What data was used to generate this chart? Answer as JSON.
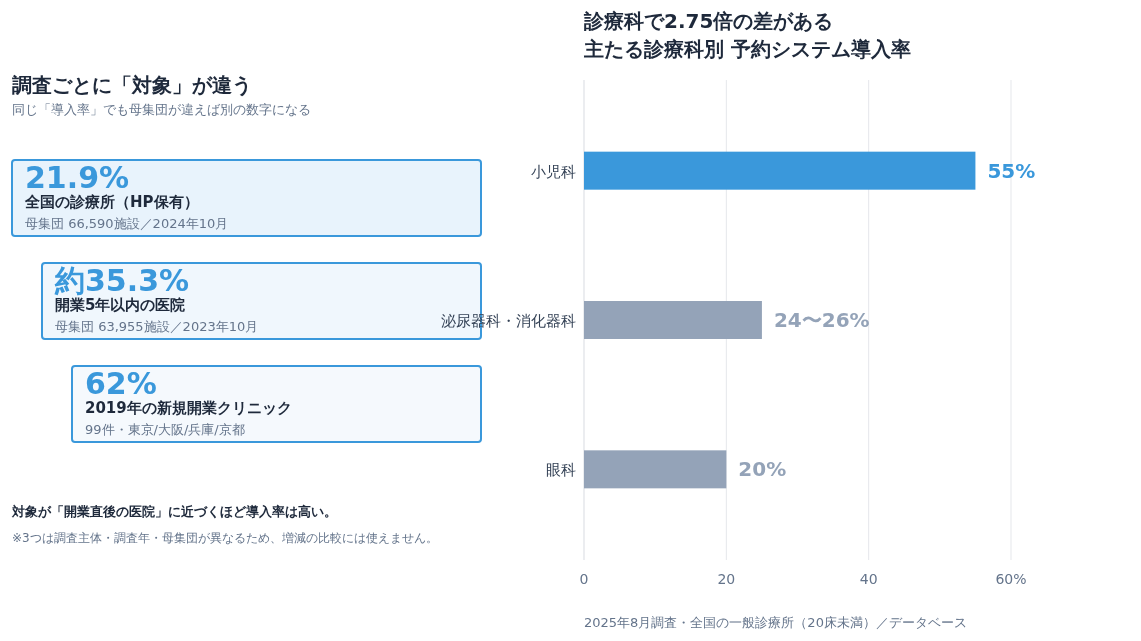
{
  "chart_data": [
    {
      "type": "other",
      "title": "調査ごとに「対象」が違う",
      "subtitle": "同じ「導入率」でも母集団が違えば別の数字になる",
      "annotations": [
        "21.9%",
        "全国の診療所（HP保有）",
        "母集団 66,590施設／2024年10月",
        "約35.3%",
        "開業5年以内の医院",
        "母集団 63,955施設／2023年10月",
        "62%",
        "2019年の新規開業クリニック",
        "99件・東京/大阪/兵庫/京都",
        "対象が「開業直後の医院」に近づくほど導入率は高い。",
        "※3つは調査主体・調査年・母集団が異なるため、増減の比較には使えません。"
      ]
    },
    {
      "type": "bar",
      "orientation": "horizontal",
      "title": "診療科で2.75倍の差がある",
      "subtitle": "主たる診療科別 予約システム導入率",
      "categories": [
        "小児科",
        "泌尿器科・消化器科",
        "眼科"
      ],
      "values": [
        55,
        25,
        20
      ],
      "colors": [
        "#3a98db",
        "#94a3b8",
        "#94a3b8"
      ],
      "value_labels": [
        "55%",
        null,
        "20%"
      ],
      "xlim": [
        0,
        60
      ],
      "xticks": [
        0,
        20,
        40,
        {
          "value": 60,
          "label": "60%"
        }
      ],
      "grid": "x",
      "annotations": [
        {
          "text": "24〜26%",
          "x": 25,
          "y": "泌尿器科・消化器科"
        },
        "2025年8月調査・全国の一般診療所（20床未満）／データベース"
      ]
    }
  ]
}
